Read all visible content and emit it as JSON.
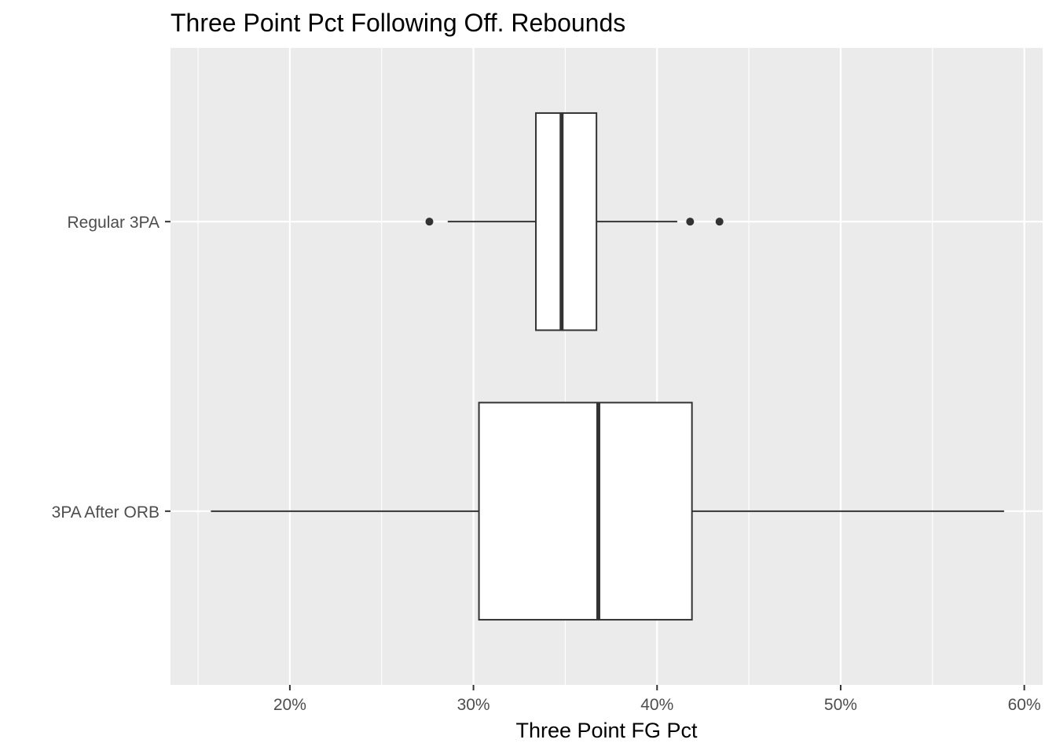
{
  "chart_data": {
    "type": "boxplot",
    "orientation": "horizontal",
    "title": "Three Point Pct Following Off. Rebounds",
    "xlabel": "Three Point FG Pct",
    "ylabel": "",
    "xlim": [
      0.135,
      0.61
    ],
    "x_ticks": [
      {
        "value": 0.2,
        "label": "20%"
      },
      {
        "value": 0.3,
        "label": "30%"
      },
      {
        "value": 0.4,
        "label": "40%"
      },
      {
        "value": 0.5,
        "label": "50%"
      },
      {
        "value": 0.6,
        "label": "60%"
      }
    ],
    "x_minor_ticks": [
      0.15,
      0.25,
      0.35,
      0.45,
      0.55
    ],
    "categories": [
      "3PA After ORB",
      "Regular 3PA"
    ],
    "grid": true,
    "colors": {
      "panel_background": "#ebebeb",
      "grid": "#ffffff",
      "box_fill": "#ffffff",
      "box_stroke": "#333333"
    },
    "boxes": [
      {
        "category": "Regular 3PA",
        "whisker_low": 0.286,
        "q1": 0.334,
        "median": 0.348,
        "q3": 0.367,
        "whisker_high": 0.411,
        "outliers": [
          0.276,
          0.418,
          0.434
        ]
      },
      {
        "category": "3PA After ORB",
        "whisker_low": 0.157,
        "q1": 0.303,
        "median": 0.368,
        "q3": 0.419,
        "whisker_high": 0.589,
        "outliers": []
      }
    ]
  }
}
